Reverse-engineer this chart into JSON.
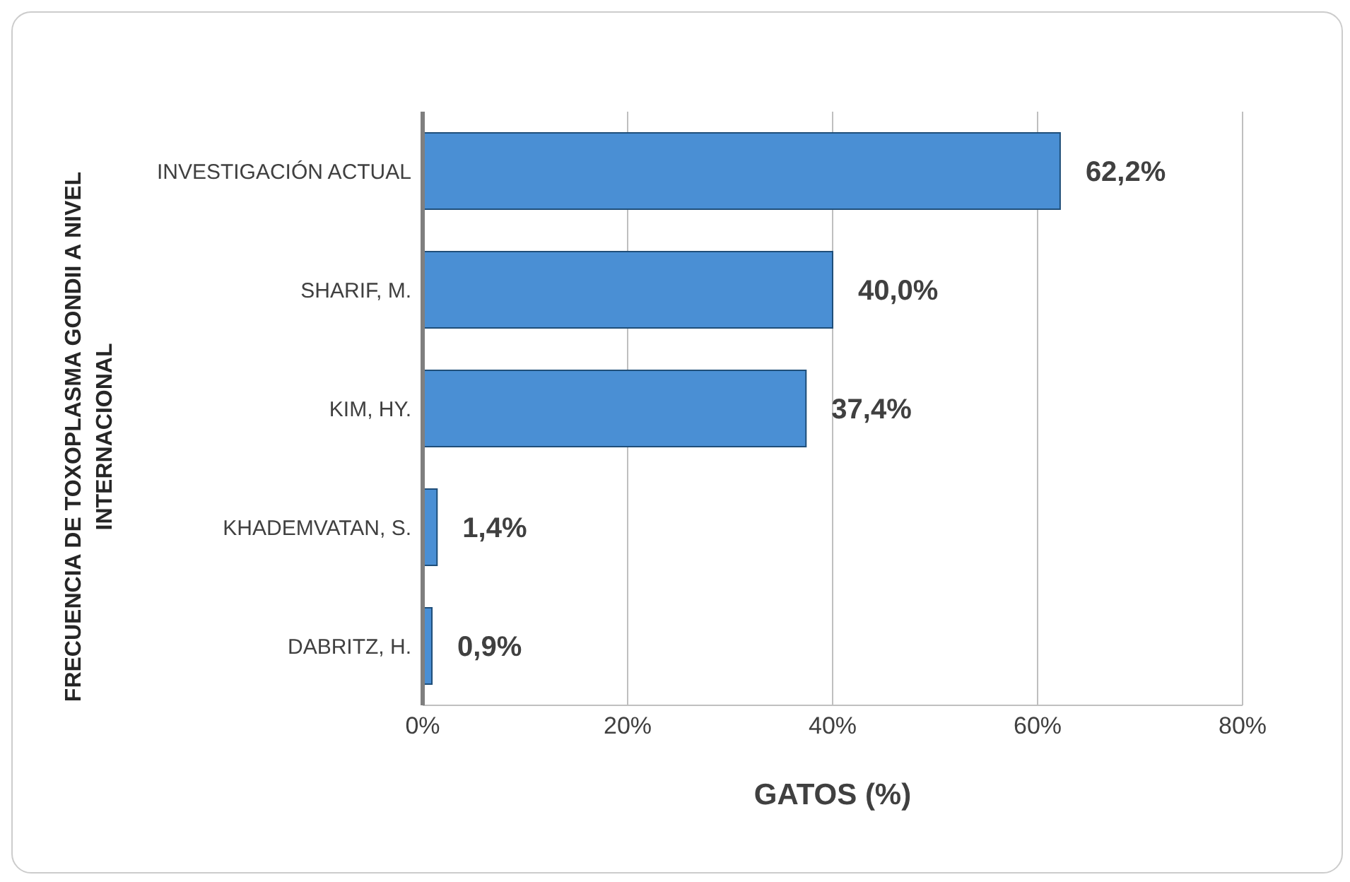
{
  "chart_data": {
    "type": "bar",
    "orientation": "horizontal",
    "xlabel": "GATOS (%)",
    "ylabel": "FRECUENCIA DE TOXOPLASMA GONDII A NIVEL INTERNACIONAL",
    "categories": [
      "INVESTIGACIÓN ACTUAL",
      "SHARIF, M.",
      "KIM, HY.",
      "KHADEMVATAN, S.",
      "DABRITZ, H."
    ],
    "values": [
      62.2,
      40.0,
      37.4,
      1.4,
      0.9
    ],
    "value_labels": [
      "62,2%",
      "40,0%",
      "37,4%",
      "1,4%",
      "0,9%"
    ],
    "color": "#4a8fd4",
    "xlim": [
      0,
      80
    ],
    "xticks": [
      {
        "value": 0,
        "label": "0%"
      },
      {
        "value": 20,
        "label": "20%"
      },
      {
        "value": 40,
        "label": "40%"
      },
      {
        "value": 60,
        "label": "60%"
      },
      {
        "value": 80,
        "label": "80%"
      }
    ],
    "grid": "x"
  }
}
